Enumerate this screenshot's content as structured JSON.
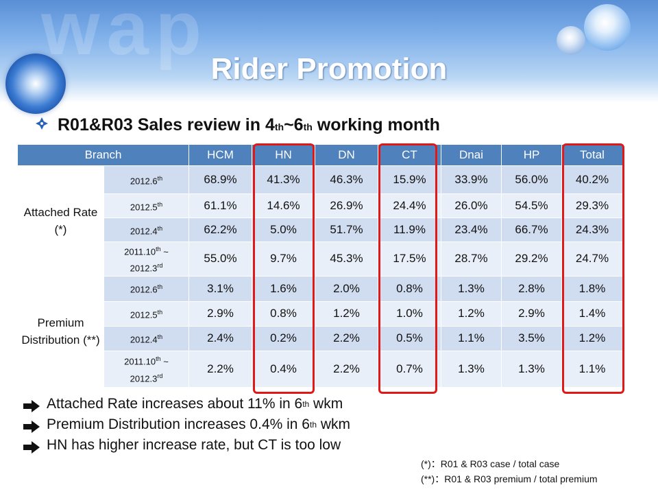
{
  "header": {
    "title": "Rider Promotion",
    "watermark": "wap"
  },
  "subtitle": {
    "prefix": "R01&R03 Sales review in 4",
    "sup1": "th",
    "middle": "~6",
    "sup2": "th",
    "suffix": " working month"
  },
  "table": {
    "headers": [
      "Branch",
      "HCM",
      "HN",
      "DN",
      "CT",
      "Dnai",
      "HP",
      "Total"
    ],
    "groups": [
      {
        "label": "Attached Rate (*)",
        "rows": [
          {
            "period": "2012.6",
            "period_sup": "th",
            "period2": "",
            "period2_sup": "",
            "values": [
              "68.9%",
              "41.3%",
              "46.3%",
              "15.9%",
              "33.9%",
              "56.0%",
              "40.2%"
            ]
          },
          {
            "period": "2012.5",
            "period_sup": "th",
            "period2": "",
            "period2_sup": "",
            "values": [
              "61.1%",
              "14.6%",
              "26.9%",
              "24.4%",
              "26.0%",
              "54.5%",
              "29.3%"
            ]
          },
          {
            "period": "2012.4",
            "period_sup": "th",
            "period2": "",
            "period2_sup": "",
            "values": [
              "62.2%",
              "5.0%",
              "51.7%",
              "11.9%",
              "23.4%",
              "66.7%",
              "24.3%"
            ]
          },
          {
            "period": "2011.10",
            "period_sup": "th",
            "period_tail": " ~",
            "period2": "2012.3",
            "period2_sup": "rd",
            "values": [
              "55.0%",
              "9.7%",
              "45.3%",
              "17.5%",
              "28.7%",
              "29.2%",
              "24.7%"
            ]
          }
        ]
      },
      {
        "label": "Premium Distribution (**)",
        "rows": [
          {
            "period": "2012.6",
            "period_sup": "th",
            "period2": "",
            "period2_sup": "",
            "values": [
              "3.1%",
              "1.6%",
              "2.0%",
              "0.8%",
              "1.3%",
              "2.8%",
              "1.8%"
            ]
          },
          {
            "period": "2012.5",
            "period_sup": "th",
            "period2": "",
            "period2_sup": "",
            "values": [
              "2.9%",
              "0.8%",
              "1.2%",
              "1.0%",
              "1.2%",
              "2.9%",
              "1.4%"
            ]
          },
          {
            "period": "2012.4",
            "period_sup": "th",
            "period2": "",
            "period2_sup": "",
            "values": [
              "2.4%",
              "0.2%",
              "2.2%",
              "0.5%",
              "1.1%",
              "3.5%",
              "1.2%"
            ]
          },
          {
            "period": "2011.10",
            "period_sup": "th",
            "period_tail": " ~",
            "period2": "2012.3",
            "period2_sup": "rd",
            "values": [
              "2.2%",
              "0.4%",
              "2.2%",
              "0.7%",
              "1.3%",
              "1.3%",
              "1.1%"
            ]
          }
        ]
      }
    ]
  },
  "notes": [
    {
      "pre": "Attached Rate increases about 11% in 6",
      "sup": "th",
      "post": " wkm"
    },
    {
      "pre": "Premium Distribution increases 0.4% in 6",
      "sup": "th",
      "post": " wkm"
    },
    {
      "pre": "HN has higher increase rate, but CT is too low",
      "sup": "",
      "post": ""
    }
  ],
  "footnotes": [
    "(*)：R01 & R03 case / total case",
    "(**)：R01 & R03 premium / total premium"
  ],
  "colors": {
    "header_blue": "#4f81bd",
    "row_dark": "#d0dcef",
    "row_light": "#e9eff8",
    "highlight_red": "#e01818",
    "bullet_blue": "#2a63b8"
  }
}
